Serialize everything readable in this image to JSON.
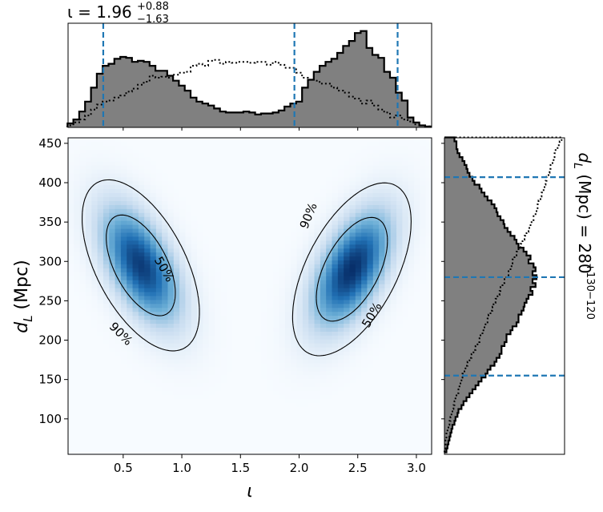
{
  "chart_data": [
    {
      "type": "area",
      "panel": "top marginal histogram",
      "title": {
        "prefix": "ι = ",
        "median": "1.96",
        "upper": "+0.88",
        "lower": "−1.63"
      },
      "x_range": [
        0.03,
        3.13
      ],
      "x": [
        0.05,
        0.1,
        0.15,
        0.2,
        0.25,
        0.3,
        0.35,
        0.4,
        0.45,
        0.5,
        0.55,
        0.6,
        0.65,
        0.7,
        0.75,
        0.8,
        0.85,
        0.9,
        0.95,
        1.0,
        1.05,
        1.1,
        1.15,
        1.2,
        1.25,
        1.3,
        1.35,
        1.4,
        1.45,
        1.5,
        1.55,
        1.6,
        1.65,
        1.7,
        1.75,
        1.8,
        1.85,
        1.9,
        1.95,
        2.0,
        2.05,
        2.1,
        2.15,
        2.2,
        2.25,
        2.3,
        2.35,
        2.4,
        2.45,
        2.5,
        2.55,
        2.6,
        2.65,
        2.7,
        2.75,
        2.8,
        2.85,
        2.9,
        2.95,
        3.0,
        3.05,
        3.1
      ],
      "posterior_density": [
        0.04,
        0.08,
        0.16,
        0.26,
        0.4,
        0.54,
        0.62,
        0.64,
        0.69,
        0.71,
        0.7,
        0.66,
        0.67,
        0.66,
        0.62,
        0.57,
        0.57,
        0.52,
        0.47,
        0.42,
        0.37,
        0.3,
        0.26,
        0.24,
        0.22,
        0.19,
        0.16,
        0.15,
        0.15,
        0.15,
        0.16,
        0.15,
        0.13,
        0.14,
        0.14,
        0.15,
        0.17,
        0.21,
        0.24,
        0.26,
        0.4,
        0.48,
        0.56,
        0.62,
        0.66,
        0.69,
        0.75,
        0.82,
        0.87,
        0.95,
        0.97,
        0.8,
        0.73,
        0.7,
        0.56,
        0.5,
        0.35,
        0.27,
        0.1,
        0.05,
        0.02,
        0.01
      ],
      "prior_density": [
        0.02,
        0.05,
        0.08,
        0.12,
        0.18,
        0.23,
        0.26,
        0.27,
        0.3,
        0.32,
        0.36,
        0.39,
        0.43,
        0.46,
        0.52,
        0.5,
        0.51,
        0.5,
        0.53,
        0.55,
        0.56,
        0.62,
        0.64,
        0.62,
        0.67,
        0.68,
        0.64,
        0.66,
        0.65,
        0.66,
        0.66,
        0.65,
        0.66,
        0.66,
        0.63,
        0.66,
        0.63,
        0.6,
        0.6,
        0.55,
        0.5,
        0.48,
        0.47,
        0.44,
        0.44,
        0.4,
        0.37,
        0.35,
        0.31,
        0.29,
        0.24,
        0.27,
        0.22,
        0.18,
        0.15,
        0.1,
        0.12,
        0.08,
        0.06,
        0.03,
        0.02,
        0.01
      ],
      "quantile_lines": [
        0.33,
        1.96,
        2.84
      ]
    },
    {
      "type": "heatmap",
      "panel": "joint posterior",
      "xlabel": "ι",
      "ylabel_symbol": "d",
      "ylabel_sub": "L",
      "ylabel_unit": " (Mpc)",
      "x_range": [
        0.03,
        3.13
      ],
      "y_range": [
        55,
        457
      ],
      "x_ticks": [
        0.5,
        1.0,
        1.5,
        2.0,
        2.5,
        3.0
      ],
      "x_tick_labels": [
        "0.5",
        "1.0",
        "1.5",
        "2.0",
        "2.5",
        "3.0"
      ],
      "y_ticks": [
        100,
        150,
        200,
        250,
        300,
        350,
        400,
        450
      ],
      "y_tick_labels": [
        "100",
        "150",
        "200",
        "250",
        "300",
        "350",
        "400",
        "450"
      ],
      "modes": [
        {
          "x": 0.65,
          "y": 295,
          "sx": 0.23,
          "sy": 50,
          "rho": -0.55,
          "weight": 1.0
        },
        {
          "x": 2.45,
          "y": 290,
          "sx": 0.23,
          "sy": 50,
          "rho": 0.55,
          "weight": 1.05
        }
      ],
      "contours": [
        {
          "level": "50%",
          "label": "50%"
        },
        {
          "level": "90%",
          "label": "90%"
        }
      ],
      "colormap": [
        "#f7fbff",
        "#c6dbef",
        "#6baed6",
        "#2171b5",
        "#08306b"
      ]
    },
    {
      "type": "area",
      "panel": "right marginal histogram",
      "side_label": {
        "symbol": "d",
        "sub": "L",
        "text": " (Mpc) = 280",
        "upper": "+130",
        "lower": "−120"
      },
      "y_range": [
        55,
        457
      ],
      "y": [
        60,
        65,
        70,
        75,
        80,
        85,
        90,
        95,
        100,
        105,
        110,
        115,
        120,
        125,
        130,
        135,
        140,
        145,
        150,
        155,
        160,
        165,
        170,
        175,
        180,
        185,
        190,
        195,
        200,
        205,
        210,
        215,
        220,
        225,
        230,
        235,
        240,
        245,
        250,
        255,
        260,
        265,
        270,
        275,
        280,
        285,
        290,
        295,
        300,
        305,
        310,
        315,
        320,
        325,
        330,
        335,
        340,
        345,
        350,
        355,
        360,
        365,
        370,
        375,
        380,
        385,
        390,
        395,
        400,
        405,
        410,
        415,
        420,
        425,
        430,
        435,
        440,
        445,
        450,
        455
      ],
      "posterior_density": [
        0.02,
        0.03,
        0.04,
        0.05,
        0.06,
        0.07,
        0.08,
        0.1,
        0.11,
        0.13,
        0.14,
        0.17,
        0.19,
        0.22,
        0.25,
        0.28,
        0.31,
        0.34,
        0.37,
        0.41,
        0.43,
        0.46,
        0.5,
        0.52,
        0.55,
        0.57,
        0.57,
        0.6,
        0.62,
        0.62,
        0.66,
        0.68,
        0.72,
        0.74,
        0.74,
        0.77,
        0.79,
        0.8,
        0.82,
        0.84,
        0.88,
        0.86,
        0.91,
        0.88,
        0.92,
        0.88,
        0.91,
        0.89,
        0.84,
        0.86,
        0.82,
        0.79,
        0.74,
        0.72,
        0.7,
        0.66,
        0.63,
        0.6,
        0.59,
        0.56,
        0.53,
        0.52,
        0.5,
        0.47,
        0.43,
        0.4,
        0.37,
        0.35,
        0.3,
        0.28,
        0.25,
        0.23,
        0.22,
        0.2,
        0.18,
        0.15,
        0.13,
        0.12,
        0.12,
        0.1
      ],
      "prior_density": [
        0.0,
        0.01,
        0.01,
        0.02,
        0.02,
        0.03,
        0.04,
        0.05,
        0.06,
        0.07,
        0.08,
        0.09,
        0.1,
        0.11,
        0.12,
        0.14,
        0.15,
        0.16,
        0.17,
        0.18,
        0.2,
        0.21,
        0.23,
        0.25,
        0.27,
        0.29,
        0.31,
        0.33,
        0.35,
        0.36,
        0.38,
        0.4,
        0.41,
        0.43,
        0.44,
        0.46,
        0.48,
        0.49,
        0.51,
        0.53,
        0.55,
        0.56,
        0.58,
        0.6,
        0.62,
        0.64,
        0.66,
        0.67,
        0.68,
        0.7,
        0.72,
        0.74,
        0.76,
        0.78,
        0.8,
        0.82,
        0.84,
        0.86,
        0.87,
        0.89,
        0.91,
        0.92,
        0.93,
        0.94,
        0.96,
        0.97,
        0.99,
        1.0,
        1.01,
        1.02,
        1.04,
        1.05,
        1.06,
        1.08,
        1.09,
        1.1,
        1.11,
        1.13,
        1.15,
        1.17
      ],
      "quantile_lines": [
        155,
        280,
        407
      ]
    }
  ]
}
